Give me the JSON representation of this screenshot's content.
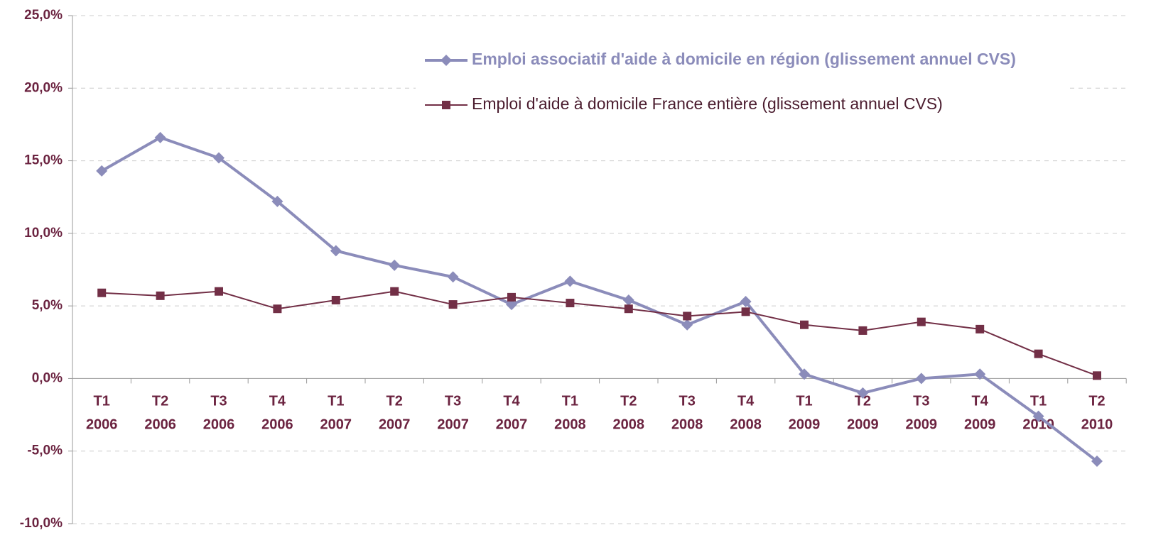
{
  "chart_data": {
    "type": "line",
    "categories": [
      [
        "T1",
        "2006"
      ],
      [
        "T2",
        "2006"
      ],
      [
        "T3",
        "2006"
      ],
      [
        "T4",
        "2006"
      ],
      [
        "T1",
        "2007"
      ],
      [
        "T2",
        "2007"
      ],
      [
        "T3",
        "2007"
      ],
      [
        "T4",
        "2007"
      ],
      [
        "T1",
        "2008"
      ],
      [
        "T2",
        "2008"
      ],
      [
        "T3",
        "2008"
      ],
      [
        "T4",
        "2008"
      ],
      [
        "T1",
        "2009"
      ],
      [
        "T2",
        "2009"
      ],
      [
        "T3",
        "2009"
      ],
      [
        "T4",
        "2009"
      ],
      [
        "T1",
        "2010"
      ],
      [
        "T2",
        "2010"
      ]
    ],
    "series": [
      {
        "name": "Emploi associatif d'aide à domicile en région (glissement annuel CVS)",
        "color": "#8b8cba",
        "marker": "diamond",
        "values": [
          14.3,
          16.6,
          15.2,
          12.2,
          8.8,
          7.8,
          7.0,
          5.1,
          6.7,
          5.4,
          3.7,
          5.3,
          0.3,
          -1.0,
          0.0,
          0.3,
          -2.6,
          -5.7
        ]
      },
      {
        "name": "Emploi d'aide à domicile France entière (glissement annuel CVS)",
        "color": "#722f46",
        "marker": "square",
        "values": [
          5.9,
          5.7,
          6.0,
          4.8,
          5.4,
          6.0,
          5.1,
          5.6,
          5.2,
          4.8,
          4.3,
          4.6,
          3.7,
          3.3,
          3.9,
          3.4,
          1.7,
          0.2
        ]
      }
    ],
    "ylim": [
      -10,
      25
    ],
    "yticks": [
      {
        "value": -10,
        "label": "-10,0%"
      },
      {
        "value": -5,
        "label": "-5,0%"
      },
      {
        "value": 0,
        "label": "0,0%"
      },
      {
        "value": 5,
        "label": "5,0%"
      },
      {
        "value": 10,
        "label": "10,0%"
      },
      {
        "value": 15,
        "label": "15,0%"
      },
      {
        "value": 20,
        "label": "20,0%"
      },
      {
        "value": 25,
        "label": "25,0%"
      }
    ],
    "grid": true,
    "legend": "top-right"
  }
}
